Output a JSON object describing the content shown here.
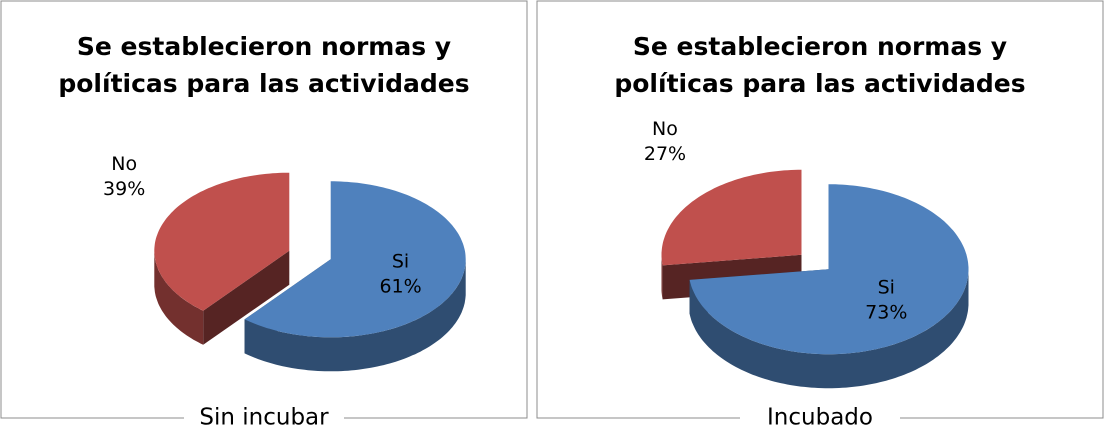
{
  "chart_data": [
    {
      "type": "pie",
      "title": [
        "Se establecieron normas y",
        "políticas para las actividades"
      ],
      "categories": [
        "Si",
        "No"
      ],
      "values": [
        61,
        39
      ],
      "value_labels": [
        "61%",
        "39%"
      ],
      "colors": [
        "#4f81bd",
        "#c0504d"
      ],
      "caption": "Sin incubar"
    },
    {
      "type": "pie",
      "title": [
        "Se establecieron normas y",
        "políticas para las actividades"
      ],
      "categories": [
        "Si",
        "No"
      ],
      "values": [
        73,
        27
      ],
      "value_labels": [
        "73%",
        "27%"
      ],
      "colors": [
        "#4f81bd",
        "#c0504d"
      ],
      "caption": "Incubado"
    }
  ]
}
